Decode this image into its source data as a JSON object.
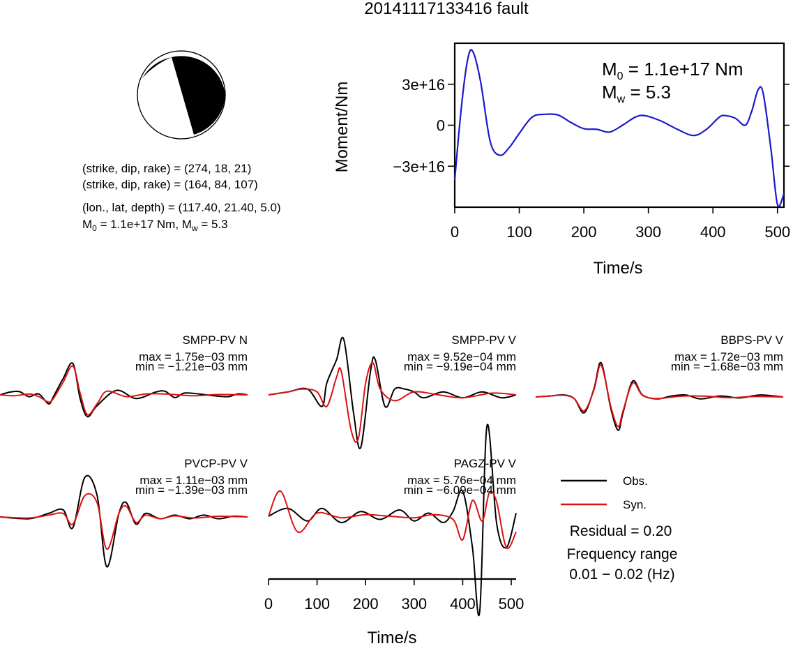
{
  "title": "20141117133416 fault",
  "focal": {
    "line1": "(strike, dip, rake) = (274, 18, 21)",
    "line2": "(strike, dip, rake) = (164, 84, 107)",
    "line3": "(lon., lat, depth) = (117.40, 21.40, 5.0)",
    "m0_prefix": "M",
    "m0_sub": "0",
    "m0_value": " =  1.1e+17 Nm, M",
    "mw_sub": "w",
    "mw_value": " = 5.3"
  },
  "colors": {
    "observed": "#000000",
    "synthetic": "#dd1111",
    "moment_line": "#1a1acc",
    "beachball_fill": "#000000"
  },
  "chart_data": [
    {
      "type": "line",
      "title": "",
      "xlabel": "Time/s",
      "ylabel": "Moment/Nm",
      "xlim": [
        0,
        510
      ],
      "ylim": [
        -6e+16,
        6e+16
      ],
      "xticks": [
        "0",
        "100",
        "200",
        "300",
        "400",
        "500"
      ],
      "yticks": [
        "3e+16",
        "0",
        "−3e+16"
      ],
      "annotation": {
        "m0_prefix": "M",
        "m0_sub": "0",
        "m0_value": " =  1.1e+17 Nm",
        "mw_prefix": "M",
        "mw_sub": "w",
        "mw_value": " = 5.3"
      },
      "series": [
        {
          "x": [
            0,
            10,
            20,
            28,
            40,
            55,
            70,
            85,
            100,
            120,
            140,
            160,
            180,
            200,
            220,
            240,
            260,
            280,
            295,
            320,
            345,
            370,
            390,
            410,
            420,
            435,
            450,
            460,
            470,
            478,
            490,
            500,
            510
          ],
          "values": [
            -4e+16,
            1.2e+16,
            4.8e+16,
            5.4e+16,
            3.2e+16,
            -1.2e+16,
            -2.2e+16,
            -1.6e+16,
            -6000000000000000.0,
            6000000000000000.0,
            8000000000000000.0,
            7500000000000000.0,
            2000000000000000.0,
            -2500000000000000.0,
            -3000000000000000.0,
            -5000000000000000.0,
            0,
            6000000000000000.0,
            7000000000000000.0,
            3000000000000000.0,
            -3000000000000000.0,
            -7500000000000000.0,
            -3000000000000000.0,
            6000000000000000.0,
            7000000000000000.0,
            5000000000000000.0,
            0,
            1e+16,
            2.6e+16,
            2.3e+16,
            -1.8e+16,
            -5.8e+16,
            -5e+16
          ]
        }
      ]
    },
    {
      "type": "line",
      "title": "SMPP-PV N",
      "max_label": "max = 1.75e−03 mm",
      "min_label": "min = −1.21e−03 mm",
      "xlim": [
        0,
        510
      ],
      "ylim": [
        -0.0014,
        0.0019
      ],
      "series": [
        {
          "name": "Obs.",
          "x": [
            0,
            20,
            40,
            60,
            80,
            100,
            110,
            130,
            150,
            165,
            180,
            200,
            240,
            280,
            320,
            340,
            360,
            380,
            410,
            440,
            470,
            490,
            510
          ],
          "values": [
            0,
            0.00015,
            0.00018,
            -0.0001,
            5e-05,
            -0.0005,
            -0.0001,
            0.0009,
            0.00175,
            -0.0002,
            -0.00121,
            -0.0006,
            0.00025,
            -0.0002,
            0.00015,
            0.0002,
            -0.00015,
            0.0001,
            5e-05,
            -5e-05,
            -0.0001,
            5e-05,
            0
          ]
        },
        {
          "name": "Syn.",
          "x": [
            0,
            30,
            60,
            80,
            100,
            110,
            130,
            150,
            165,
            180,
            200,
            220,
            260,
            300,
            340,
            400,
            450,
            510
          ],
          "values": [
            0,
            -5e-05,
            5e-05,
            -0.0001,
            -0.0004,
            -0.0002,
            0.0007,
            0.0016,
            0.0001,
            -0.0011,
            -0.0005,
            0.0002,
            -0.0001,
            5e-05,
            5e-05,
            -5e-05,
            2e-05,
            0
          ]
        }
      ]
    },
    {
      "type": "line",
      "title": "SMPP-PV V",
      "max_label": "max = 9.52e−04 mm",
      "min_label": "min = −9.19e−04 mm",
      "xlim": [
        0,
        510
      ],
      "ylim": [
        -0.001,
        0.0011
      ],
      "series": [
        {
          "name": "Obs.",
          "x": [
            0,
            40,
            80,
            110,
            120,
            140,
            155,
            175,
            190,
            210,
            220,
            240,
            260,
            280,
            300,
            320,
            360,
            400,
            440,
            480,
            510
          ],
          "values": [
            0,
            5e-05,
            0.0001,
            -0.0002,
            0.0002,
            0.0006,
            0.00095,
            -0.0003,
            -0.0009,
            0.0004,
            0.0006,
            -0.0002,
            0.0001,
            0.0001,
            5e-05,
            -5e-05,
            5e-05,
            -5e-05,
            5e-05,
            -5e-05,
            0
          ]
        },
        {
          "name": "Syn.",
          "x": [
            0,
            40,
            70,
            100,
            120,
            140,
            150,
            170,
            185,
            200,
            215,
            230,
            260,
            300,
            350,
            400,
            460,
            510
          ],
          "values": [
            0,
            5e-05,
            0.0001,
            5e-05,
            -0.0002,
            0.0003,
            0.0004,
            -0.0006,
            -0.00075,
            0.0002,
            0.00055,
            0.0001,
            -0.0001,
            5e-05,
            0,
            -5e-05,
            3e-05,
            0
          ]
        }
      ]
    },
    {
      "type": "line",
      "title": "BBPS-PV V",
      "max_label": "max = 1.72e−03 mm",
      "min_label": "min = −1.68e−03 mm",
      "xlim": [
        0,
        510
      ],
      "ylim": [
        -0.0019,
        0.0018
      ],
      "series": [
        {
          "name": "Obs.",
          "x": [
            0,
            30,
            60,
            80,
            100,
            120,
            135,
            155,
            170,
            180,
            200,
            220,
            250,
            280,
            310,
            340,
            380,
            420,
            460,
            490,
            510
          ],
          "values": [
            0,
            5e-05,
            0.0001,
            -0.0001,
            -0.0008,
            0.0004,
            0.00172,
            -0.0006,
            -0.00168,
            -0.0008,
            0.0008,
            0.0001,
            -0.0001,
            5e-05,
            0.0001,
            -0.0001,
            5e-05,
            -5e-05,
            0.0001,
            5e-05,
            0
          ]
        },
        {
          "name": "Syn.",
          "x": [
            0,
            30,
            60,
            80,
            100,
            120,
            135,
            155,
            170,
            180,
            200,
            220,
            250,
            300,
            350,
            400,
            450,
            510
          ],
          "values": [
            0,
            5e-05,
            8e-05,
            -0.0001,
            -0.0007,
            0.00035,
            0.0016,
            -0.0005,
            -0.0015,
            -0.0007,
            0.0007,
            8e-05,
            -8e-05,
            4e-05,
            4e-05,
            -4e-05,
            2e-05,
            0
          ]
        }
      ]
    },
    {
      "type": "line",
      "title": "PVCP-PV V",
      "max_label": "max = 1.11e−03 mm",
      "min_label": "min = −1.39e−03 mm",
      "xlim": [
        0,
        510
      ],
      "ylim": [
        -0.0015,
        0.00135
      ],
      "series": [
        {
          "name": "Obs.",
          "x": [
            0,
            60,
            100,
            130,
            150,
            175,
            200,
            220,
            245,
            260,
            280,
            300,
            330,
            360,
            390,
            420,
            450,
            480,
            510
          ],
          "values": [
            0,
            -5e-05,
            0.0001,
            0.0002,
            -0.0003,
            0.00111,
            0.0006,
            -0.00139,
            0.0001,
            0.0004,
            -0.0002,
            0.0001,
            -5e-05,
            5e-05,
            -5e-05,
            5e-05,
            -5e-05,
            2e-05,
            0
          ]
        },
        {
          "name": "Syn.",
          "x": [
            0,
            60,
            100,
            130,
            150,
            175,
            200,
            220,
            245,
            260,
            280,
            300,
            330,
            360,
            400,
            450,
            510
          ],
          "values": [
            0,
            -3e-05,
            5e-05,
            0.0001,
            -0.0002,
            0.0006,
            0.0004,
            -0.0009,
            0.0001,
            0.0003,
            -0.00015,
            5e-05,
            -5e-05,
            3e-05,
            -3e-05,
            2e-05,
            0
          ]
        }
      ]
    },
    {
      "type": "line",
      "title": "PAGZ-PV V",
      "max_label": "max = 5.76e−04 mm",
      "min_label": "min = −6.09e−04 mm",
      "xlabel": "Time/s",
      "xticks": [
        "0",
        "100",
        "200",
        "300",
        "400",
        "500"
      ],
      "xlim": [
        0,
        510
      ],
      "ylim": [
        -0.00065,
        0.0006
      ],
      "series": [
        {
          "name": "Obs.",
          "x": [
            0,
            40,
            80,
            110,
            150,
            190,
            230,
            270,
            300,
            330,
            360,
            380,
            400,
            420,
            435,
            450,
            470,
            490,
            510
          ],
          "values": [
            0,
            5e-05,
            -3e-05,
            5e-05,
            -4e-05,
            3e-05,
            -2e-05,
            4e-05,
            -3e-05,
            2e-05,
            -4e-05,
            3e-05,
            0.00016,
            -0.0002,
            -0.000609,
            0.000576,
            -5e-05,
            -0.0002,
            2e-05
          ]
        },
        {
          "name": "Syn.",
          "x": [
            0,
            25,
            60,
            100,
            150,
            200,
            250,
            300,
            340,
            380,
            400,
            420,
            440,
            455,
            470,
            490,
            510
          ],
          "values": [
            0,
            0.00016,
            -0.0001,
            2e-05,
            -1e-05,
            1e-05,
            0,
            -1e-05,
            1e-05,
            -2e-05,
            -0.00015,
            0.0001,
            -3e-05,
            0.00015,
            9e-05,
            -0.0002,
            -0.0001
          ]
        }
      ]
    }
  ],
  "legend": {
    "obs_label": "Obs.",
    "syn_label": "Syn."
  },
  "residual": "Residual = 0.20",
  "freq_label": "Frequency range",
  "freq_value": "0.01 − 0.02 (Hz)"
}
